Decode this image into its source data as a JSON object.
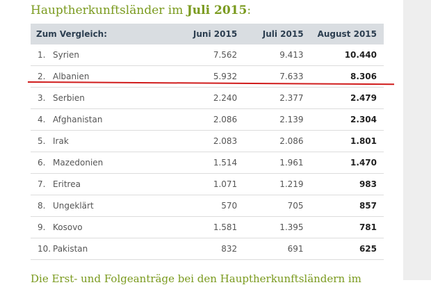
{
  "headline": {
    "prefix": "Hauptherkunftsländer im ",
    "bold": "Juli 2015",
    "suffix": ":"
  },
  "table": {
    "headers": [
      "Zum Vergleich:",
      "Juni 2015",
      "Juli 2015",
      "August 2015"
    ],
    "rows": [
      {
        "rank": "1.",
        "country": "Syrien",
        "jun": "7.562",
        "jul": "9.413",
        "aug": "10.440"
      },
      {
        "rank": "2.",
        "country": "Albanien",
        "jun": "5.932",
        "jul": "7.633",
        "aug": "8.306"
      },
      {
        "rank": "3.",
        "country": "Serbien",
        "jun": "2.240",
        "jul": "2.377",
        "aug": "2.479"
      },
      {
        "rank": "4.",
        "country": "Afghanistan",
        "jun": "2.086",
        "jul": "2.139",
        "aug": "2.304"
      },
      {
        "rank": "5.",
        "country": "Irak",
        "jun": "2.083",
        "jul": "2.086",
        "aug": "1.801"
      },
      {
        "rank": "6.",
        "country": "Mazedonien",
        "jun": "1.514",
        "jul": "1.961",
        "aug": "1.470"
      },
      {
        "rank": "7.",
        "country": "Eritrea",
        "jun": "1.071",
        "jul": "1.219",
        "aug": "983"
      },
      {
        "rank": "8.",
        "country": "Ungeklärt",
        "jun": "570",
        "jul": "705",
        "aug": "857"
      },
      {
        "rank": "9.",
        "country": "Kosovo",
        "jun": "1.581",
        "jul": "1.395",
        "aug": "781"
      },
      {
        "rank": "10.",
        "country": "Pakistan",
        "jun": "832",
        "jul": "691",
        "aug": "625"
      }
    ]
  },
  "subheadline": "Die Erst- und Folgeanträge bei den Hauptherkunftsländern im",
  "colors": {
    "accent": "#7a9a1e",
    "header_bg": "#d9dde1",
    "annotation": "#d01c1c"
  }
}
